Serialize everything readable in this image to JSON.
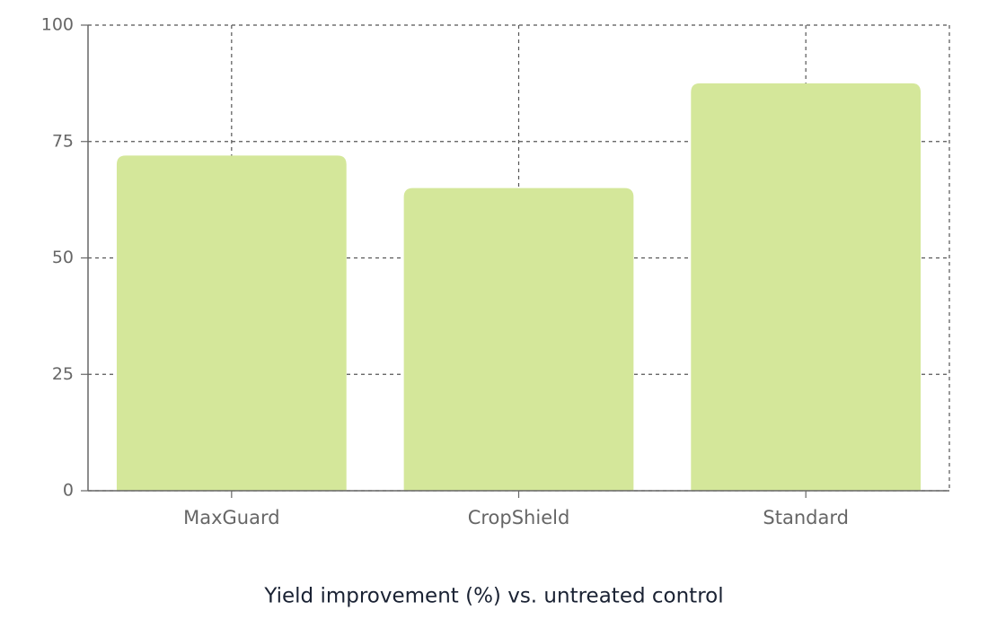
{
  "chart_data": {
    "type": "bar",
    "title": "Yield improvement (%) vs. untreated control",
    "categories": [
      "MaxGuard",
      "CropShield",
      "Standard"
    ],
    "values": [
      72,
      65,
      87.5
    ],
    "color": "#d4e79a",
    "ylim": [
      0,
      100
    ],
    "yticks": [
      0,
      25,
      50,
      75,
      100
    ],
    "grid": true
  }
}
